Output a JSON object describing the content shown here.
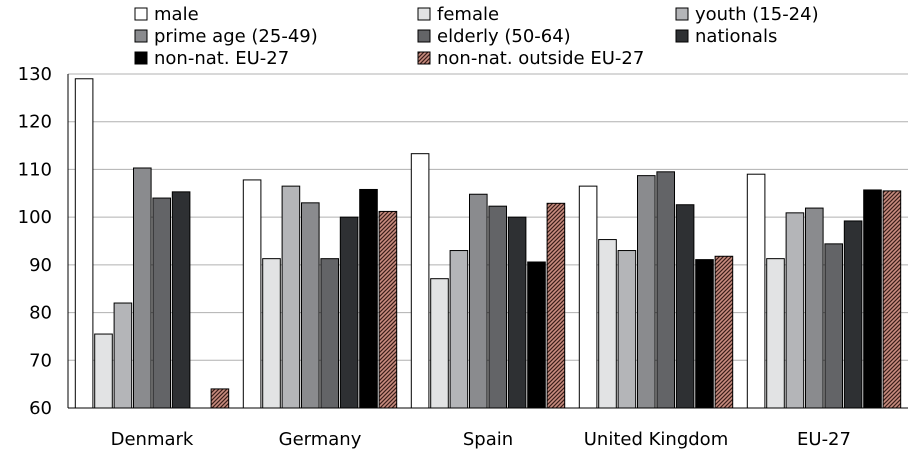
{
  "chart_data": {
    "type": "bar",
    "categories": [
      "Denmark",
      "Germany",
      "Spain",
      "United Kingdom",
      "EU-27"
    ],
    "ylim": [
      60,
      130
    ],
    "yticks": [
      60,
      70,
      80,
      90,
      100,
      110,
      120,
      130
    ],
    "grid": true,
    "legend_position": "top",
    "series": [
      {
        "name": "male",
        "color": "#ffffff",
        "values": [
          129,
          107.8,
          113.3,
          106.5,
          109
        ]
      },
      {
        "name": "female",
        "color": "#e2e3e4",
        "values": [
          75.5,
          91.3,
          87.1,
          95.3,
          91.3
        ]
      },
      {
        "name": "youth (15-24)",
        "color": "#b4b5b8",
        "values": [
          82,
          106.5,
          93,
          93,
          100.9
        ]
      },
      {
        "name": "prime age (25-49)",
        "color": "#8a8b8e",
        "values": [
          110.3,
          103,
          104.8,
          108.7,
          101.9
        ]
      },
      {
        "name": "elderly (50-64)",
        "color": "#636467",
        "values": [
          104,
          91.3,
          102.3,
          109.5,
          94.4
        ]
      },
      {
        "name": "nationals",
        "color": "#2e3033",
        "values": [
          105.3,
          100,
          100,
          102.6,
          99.2
        ]
      },
      {
        "name": "non-nat. EU-27",
        "color": "#000000",
        "values": [
          null,
          105.8,
          90.6,
          91.1,
          105.7
        ]
      },
      {
        "name": "non-nat. outside EU-27",
        "color": "#c98d80",
        "pattern": "hatch",
        "values": [
          64,
          101.2,
          102.9,
          91.8,
          105.5
        ]
      }
    ]
  }
}
